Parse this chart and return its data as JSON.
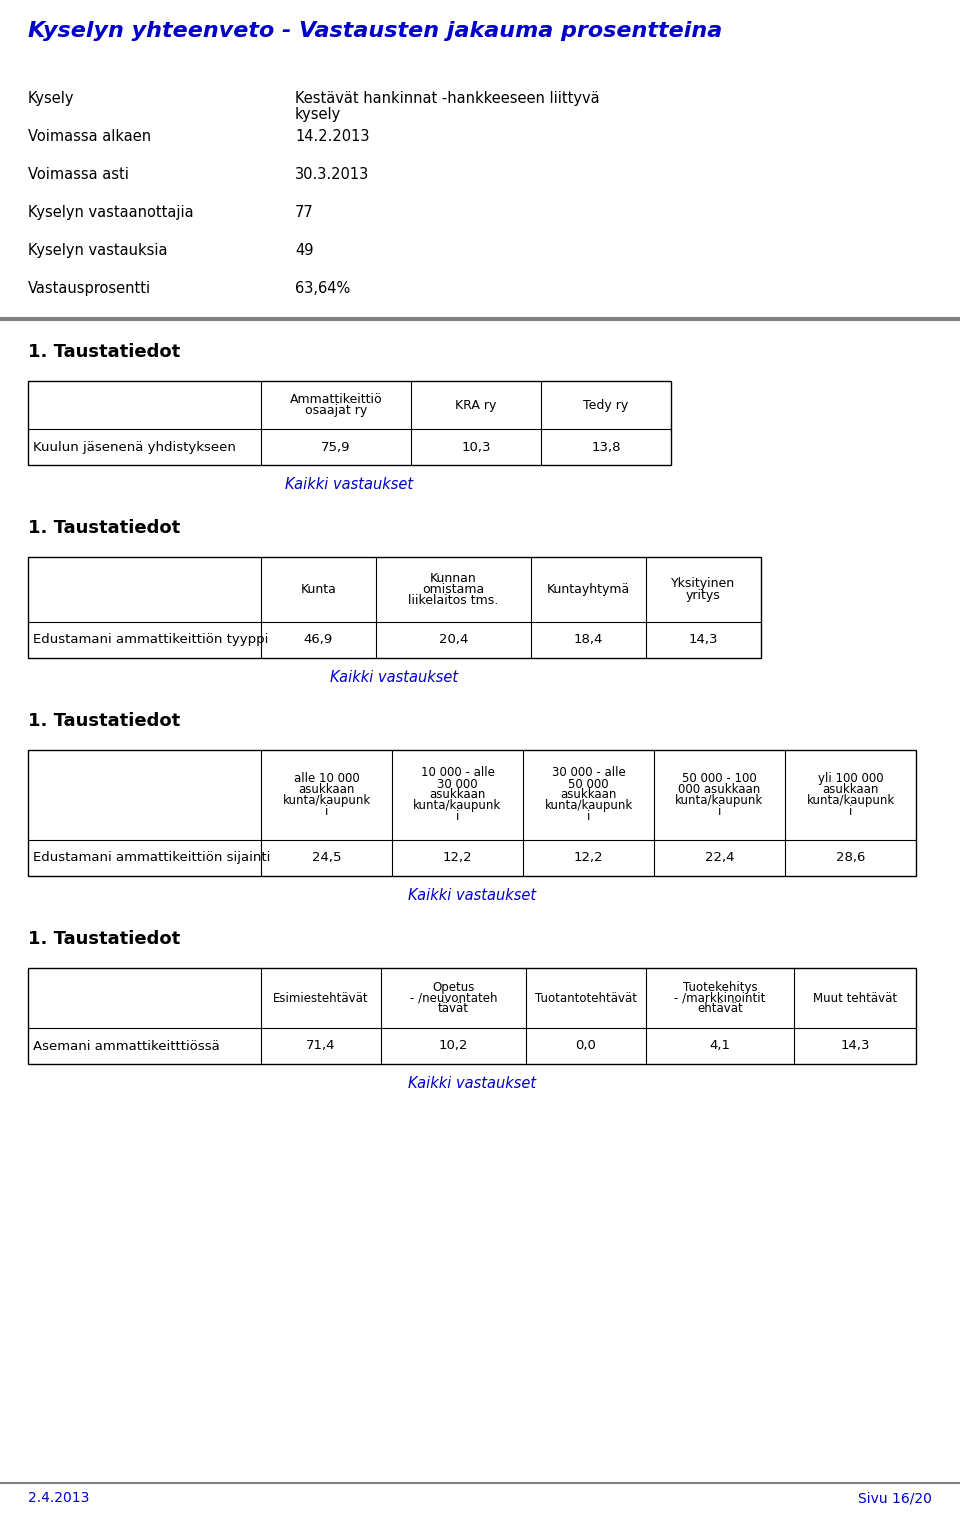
{
  "title": "Kyselyn yhteenveto - Vastausten jakauma prosentteina",
  "title_color": "#0000CC",
  "info_labels": [
    "Kysely",
    "Voimassa alkaen",
    "Voimassa asti",
    "Kyselyn vastaanottajia",
    "Kyselyn vastauksia",
    "Vastausprosentti"
  ],
  "info_values": [
    "Kestävät hankinnat -hankkeeseen liittyvä\nkysely",
    "14.2.2013",
    "30.3.2013",
    "77",
    "49",
    "63,64%"
  ],
  "section1_title": "1. Taustatiedot",
  "table1_headers": [
    "",
    "Ammattikeittiö\nosaajat ry",
    "KRA ry",
    "Tedy ry"
  ],
  "table1_rows": [
    [
      "Kuulun jäsenenä yhdistykseen",
      "75,9",
      "10,3",
      "13,8"
    ]
  ],
  "table1_link": "Kaikki vastaukset",
  "section2_title": "1. Taustatiedot",
  "table2_headers": [
    "",
    "Kunta",
    "Kunnan\nomistama\nliikelaitos tms.",
    "Kuntayhtymä",
    "Yksityinen\nyritys"
  ],
  "table2_rows": [
    [
      "Edustamani ammattikeittiön tyyppi",
      "46,9",
      "20,4",
      "18,4",
      "14,3"
    ]
  ],
  "table2_link": "Kaikki vastaukset",
  "section3_title": "1. Taustatiedot",
  "table3_headers": [
    "",
    "alle 10 000\nasukkaan\nkunta/kaupunk\ni",
    "10 000 - alle\n30 000\nasukkaan\nkunta/kaupunk\ni",
    "30 000 - alle\n50 000\nasukkaan\nkunta/kaupunk\ni",
    "50 000 - 100\n000 asukkaan\nkunta/kaupunk\ni",
    "yli 100 000\nasukkaan\nkunta/kaupunk\ni"
  ],
  "table3_rows": [
    [
      "Edustamani ammattikeittiön sijainti",
      "24,5",
      "12,2",
      "12,2",
      "22,4",
      "28,6"
    ]
  ],
  "table3_link": "Kaikki vastaukset",
  "section4_title": "1. Taustatiedot",
  "table4_headers": [
    "",
    "Esimiestehtävät",
    "Opetus\n- /neuvontateh\ntävät",
    "Tuotantotehtävät",
    "Tuotekehitys\n- /markkinointit\nehtävät",
    "Muut tehtävät"
  ],
  "table4_rows": [
    [
      "Asemani ammattikeitttiössä",
      "71,4",
      "10,2",
      "0,0",
      "4,1",
      "14,3"
    ]
  ],
  "table4_link": "Kaikki vastaukset",
  "footer_left": "2.4.2013",
  "footer_right": "Sivu 16/20",
  "footer_color": "#0000CC",
  "link_color": "#0000CC",
  "text_color": "#000000",
  "bg_color": "#ffffff",
  "divider_color": "#808080"
}
